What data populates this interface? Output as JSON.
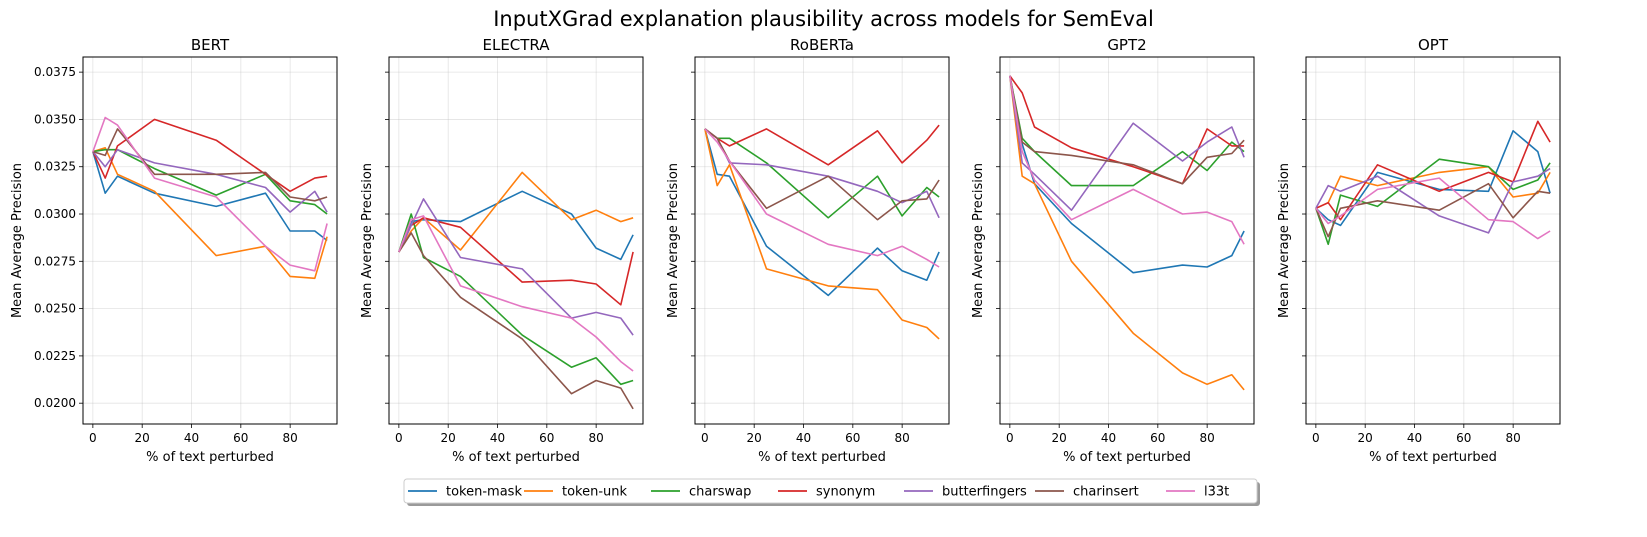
{
  "suptitle": "InputXGrad explanation plausibility across models for SemEval",
  "chart_data": {
    "type": "line",
    "xlabel": "% of text perturbed",
    "ylabel": "Mean Average Precision",
    "xlim": [
      -4,
      99
    ],
    "ylim": [
      0.0189,
      0.0383
    ],
    "xticks": [
      0,
      20,
      40,
      60,
      80
    ],
    "yticks": [
      0.02,
      0.0225,
      0.025,
      0.0275,
      0.03,
      0.0325,
      0.035,
      0.0375
    ],
    "ytick_labels": [
      "0.0200",
      "0.0225",
      "0.0250",
      "0.0275",
      "0.0300",
      "0.0325",
      "0.0350",
      "0.0375"
    ],
    "grid": true,
    "shared_y": true,
    "legend_position": "bottom-center",
    "x": [
      0,
      5,
      10,
      25,
      50,
      70,
      80,
      90,
      95
    ],
    "series_styles": [
      {
        "name": "token-mask",
        "color": "#1f77b4"
      },
      {
        "name": "token-unk",
        "color": "#ff7f0e"
      },
      {
        "name": "charswap",
        "color": "#2ca02c"
      },
      {
        "name": "synonym",
        "color": "#d62728"
      },
      {
        "name": "butterfingers",
        "color": "#9467bd"
      },
      {
        "name": "charinsert",
        "color": "#8c564b"
      },
      {
        "name": "l33t",
        "color": "#e377c2"
      }
    ],
    "panels": [
      {
        "title": "BERT",
        "series": [
          {
            "name": "token-mask",
            "values": [
              0.0333,
              0.0311,
              0.032,
              0.0311,
              0.0304,
              0.0311,
              0.0291,
              0.0291,
              0.0286
            ]
          },
          {
            "name": "token-unk",
            "values": [
              0.0333,
              0.0335,
              0.0321,
              0.0312,
              0.0278,
              0.0283,
              0.0267,
              0.0266,
              0.0288
            ]
          },
          {
            "name": "charswap",
            "values": [
              0.0333,
              0.0334,
              0.0334,
              0.0324,
              0.031,
              0.0321,
              0.0307,
              0.0305,
              0.03
            ]
          },
          {
            "name": "synonym",
            "values": [
              0.0333,
              0.0319,
              0.0336,
              0.035,
              0.0339,
              0.0321,
              0.0312,
              0.0319,
              0.032
            ]
          },
          {
            "name": "butterfingers",
            "values": [
              0.0333,
              0.0325,
              0.0334,
              0.0327,
              0.0321,
              0.0314,
              0.0301,
              0.0312,
              0.0301
            ]
          },
          {
            "name": "charinsert",
            "values": [
              0.0333,
              0.0331,
              0.0345,
              0.0321,
              0.0321,
              0.0322,
              0.0309,
              0.0307,
              0.0309
            ]
          },
          {
            "name": "l33t",
            "values": [
              0.0333,
              0.0351,
              0.0347,
              0.0319,
              0.0309,
              0.0283,
              0.0273,
              0.027,
              0.0295
            ]
          }
        ]
      },
      {
        "title": "ELECTRA",
        "series": [
          {
            "name": "token-mask",
            "values": [
              0.028,
              0.0296,
              0.0297,
              0.0296,
              0.0312,
              0.03,
              0.0282,
              0.0276,
              0.0289
            ]
          },
          {
            "name": "token-unk",
            "values": [
              0.028,
              0.0291,
              0.0298,
              0.0281,
              0.0322,
              0.0297,
              0.0302,
              0.0296,
              0.0298
            ]
          },
          {
            "name": "charswap",
            "values": [
              0.028,
              0.03,
              0.0277,
              0.0267,
              0.0236,
              0.0219,
              0.0224,
              0.021,
              0.0212
            ]
          },
          {
            "name": "synonym",
            "values": [
              0.028,
              0.0294,
              0.0298,
              0.0293,
              0.0264,
              0.0265,
              0.0263,
              0.0252,
              0.028
            ]
          },
          {
            "name": "butterfingers",
            "values": [
              0.028,
              0.0294,
              0.0308,
              0.0277,
              0.0271,
              0.0245,
              0.0248,
              0.0245,
              0.0236
            ]
          },
          {
            "name": "charinsert",
            "values": [
              0.028,
              0.029,
              0.0278,
              0.0256,
              0.0234,
              0.0205,
              0.0212,
              0.0208,
              0.0197
            ]
          },
          {
            "name": "l33t",
            "values": [
              0.028,
              0.0297,
              0.0299,
              0.0262,
              0.0251,
              0.0245,
              0.0235,
              0.0222,
              0.0217
            ]
          }
        ]
      },
      {
        "title": "RoBERTa",
        "series": [
          {
            "name": "token-mask",
            "values": [
              0.0345,
              0.0321,
              0.032,
              0.0283,
              0.0257,
              0.0282,
              0.027,
              0.0265,
              0.028
            ]
          },
          {
            "name": "token-unk",
            "values": [
              0.0345,
              0.0315,
              0.0326,
              0.0271,
              0.0262,
              0.026,
              0.0244,
              0.024,
              0.0234
            ]
          },
          {
            "name": "charswap",
            "values": [
              0.0345,
              0.034,
              0.034,
              0.0327,
              0.0298,
              0.032,
              0.0299,
              0.0314,
              0.0309
            ]
          },
          {
            "name": "synonym",
            "values": [
              0.0345,
              0.034,
              0.0336,
              0.0345,
              0.0326,
              0.0344,
              0.0327,
              0.0339,
              0.0347
            ]
          },
          {
            "name": "butterfingers",
            "values": [
              0.0345,
              0.034,
              0.0327,
              0.0326,
              0.032,
              0.0312,
              0.0306,
              0.0312,
              0.0298
            ]
          },
          {
            "name": "charinsert",
            "values": [
              0.0345,
              0.034,
              0.0328,
              0.0303,
              0.032,
              0.0297,
              0.0307,
              0.0308,
              0.0318
            ]
          },
          {
            "name": "l33t",
            "values": [
              0.0345,
              0.0338,
              0.0328,
              0.03,
              0.0284,
              0.0278,
              0.0283,
              0.0276,
              0.0272
            ]
          }
        ]
      },
      {
        "title": "GPT2",
        "series": [
          {
            "name": "token-mask",
            "values": [
              0.0373,
              0.0337,
              0.0316,
              0.0295,
              0.0269,
              0.0273,
              0.0272,
              0.0278,
              0.0291
            ]
          },
          {
            "name": "token-unk",
            "values": [
              0.0373,
              0.032,
              0.0316,
              0.0275,
              0.0237,
              0.0216,
              0.021,
              0.0215,
              0.0207
            ]
          },
          {
            "name": "charswap",
            "values": [
              0.0373,
              0.034,
              0.0333,
              0.0315,
              0.0315,
              0.0333,
              0.0323,
              0.0338,
              0.0333
            ]
          },
          {
            "name": "synonym",
            "values": [
              0.0373,
              0.0364,
              0.0346,
              0.0335,
              0.0325,
              0.0316,
              0.0345,
              0.0336,
              0.0336
            ]
          },
          {
            "name": "butterfingers",
            "values": [
              0.0373,
              0.0327,
              0.0321,
              0.0302,
              0.0348,
              0.0328,
              0.0338,
              0.0346,
              0.033
            ]
          },
          {
            "name": "charinsert",
            "values": [
              0.0373,
              0.0338,
              0.0333,
              0.0331,
              0.0326,
              0.0316,
              0.033,
              0.0332,
              0.0339
            ]
          },
          {
            "name": "l33t",
            "values": [
              0.0373,
              0.0333,
              0.0318,
              0.0297,
              0.0313,
              0.03,
              0.0301,
              0.0296,
              0.0284
            ]
          }
        ]
      },
      {
        "title": "OPT",
        "series": [
          {
            "name": "token-mask",
            "values": [
              0.0303,
              0.0297,
              0.0294,
              0.0322,
              0.0313,
              0.0312,
              0.0344,
              0.0333,
              0.0311
            ]
          },
          {
            "name": "token-unk",
            "values": [
              0.0303,
              0.0306,
              0.032,
              0.0315,
              0.0322,
              0.0325,
              0.0309,
              0.0311,
              0.0322
            ]
          },
          {
            "name": "charswap",
            "values": [
              0.0303,
              0.0284,
              0.031,
              0.0304,
              0.0329,
              0.0325,
              0.0313,
              0.0318,
              0.0327
            ]
          },
          {
            "name": "synonym",
            "values": [
              0.0303,
              0.0306,
              0.0297,
              0.0326,
              0.0312,
              0.0322,
              0.0317,
              0.0349,
              0.0338
            ]
          },
          {
            "name": "butterfingers",
            "values": [
              0.0303,
              0.0315,
              0.0312,
              0.032,
              0.0299,
              0.029,
              0.0317,
              0.032,
              0.0324
            ]
          },
          {
            "name": "charinsert",
            "values": [
              0.0303,
              0.0288,
              0.0303,
              0.0307,
              0.0302,
              0.0316,
              0.0298,
              0.0312,
              0.0311
            ]
          },
          {
            "name": "l33t",
            "values": [
              0.0303,
              0.0295,
              0.0299,
              0.0313,
              0.0319,
              0.0297,
              0.0296,
              0.0287,
              0.0291
            ]
          }
        ]
      }
    ]
  }
}
